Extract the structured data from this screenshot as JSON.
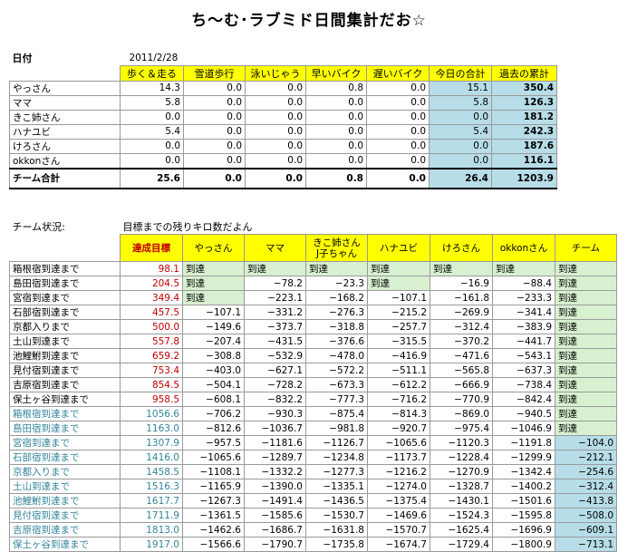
{
  "title": "ち～む･ラブミド日間集計だお☆",
  "daily": {
    "date_label": "日付",
    "date_value": "2011/2/28",
    "headers": [
      "歩く＆走る",
      "雪道歩行",
      "泳いじゃう",
      "早いバイク",
      "遅いバイク",
      "今日の合計",
      "過去の累計"
    ],
    "rows": [
      {
        "name": "やっさん",
        "vals": [
          "14.3",
          "0.0",
          "0.0",
          "0.8",
          "0.0",
          "15.1",
          "350.4"
        ]
      },
      {
        "name": "ママ",
        "vals": [
          "5.8",
          "0.0",
          "0.0",
          "0.0",
          "0.0",
          "5.8",
          "126.3"
        ]
      },
      {
        "name": "きこ姉さん",
        "vals": [
          "0.0",
          "0.0",
          "0.0",
          "0.0",
          "0.0",
          "0.0",
          "181.2"
        ]
      },
      {
        "name": "ハナユビ",
        "vals": [
          "5.4",
          "0.0",
          "0.0",
          "0.0",
          "0.0",
          "5.4",
          "242.3"
        ]
      },
      {
        "name": "けろさん",
        "vals": [
          "0.0",
          "0.0",
          "0.0",
          "0.0",
          "0.0",
          "0.0",
          "187.6"
        ]
      },
      {
        "name": "okkonさん",
        "vals": [
          "0.0",
          "0.0",
          "0.0",
          "0.0",
          "0.0",
          "0.0",
          "116.1"
        ]
      }
    ],
    "total": {
      "name": "チーム合計",
      "vals": [
        "25.6",
        "0.0",
        "0.0",
        "0.8",
        "0.0",
        "26.4",
        "1203.9"
      ]
    }
  },
  "status": {
    "label": "チーム状況:",
    "note": "目標までの残りキロ数だよん",
    "headers": [
      "達成目標",
      "やっさん",
      "ママ",
      "きこ姉さん\nJ子ちゃん",
      "ハナユビ",
      "けろさん",
      "okkonさん",
      "チーム"
    ],
    "rows": [
      {
        "name": "箱根宿到達まで",
        "goal": "98.1",
        "vals": [
          "到達",
          "到達",
          "到達",
          "到達",
          "到達",
          "到達",
          "到達"
        ]
      },
      {
        "name": "島田宿到達まで",
        "goal": "204.5",
        "vals": [
          "到達",
          "−78.2",
          "−23.3",
          "到達",
          "−16.9",
          "−88.4",
          "到達"
        ]
      },
      {
        "name": "宮宿到達まで",
        "goal": "349.4",
        "vals": [
          "到達",
          "−223.1",
          "−168.2",
          "−107.1",
          "−161.8",
          "−233.3",
          "到達"
        ]
      },
      {
        "name": "石部宿到達まで",
        "goal": "457.5",
        "vals": [
          "−107.1",
          "−331.2",
          "−276.3",
          "−215.2",
          "−269.9",
          "−341.4",
          "到達"
        ]
      },
      {
        "name": "京都入りまで",
        "goal": "500.0",
        "vals": [
          "−149.6",
          "−373.7",
          "−318.8",
          "−257.7",
          "−312.4",
          "−383.9",
          "到達"
        ]
      },
      {
        "name": "土山到達まで",
        "goal": "557.8",
        "vals": [
          "−207.4",
          "−431.5",
          "−376.6",
          "−315.5",
          "−370.2",
          "−441.7",
          "到達"
        ]
      },
      {
        "name": "池鯉鮒到達まで",
        "goal": "659.2",
        "vals": [
          "−308.8",
          "−532.9",
          "−478.0",
          "−416.9",
          "−471.6",
          "−543.1",
          "到達"
        ]
      },
      {
        "name": "見付宿到達まで",
        "goal": "753.4",
        "vals": [
          "−403.0",
          "−627.1",
          "−572.2",
          "−511.1",
          "−565.8",
          "−637.3",
          "到達"
        ]
      },
      {
        "name": "吉原宿到達まで",
        "goal": "854.5",
        "vals": [
          "−504.1",
          "−728.2",
          "−673.3",
          "−612.2",
          "−666.9",
          "−738.4",
          "到達"
        ]
      },
      {
        "name": "保土ヶ谷到達まで",
        "goal": "958.5",
        "vals": [
          "−608.1",
          "−832.2",
          "−777.3",
          "−716.2",
          "−770.9",
          "−842.4",
          "到達"
        ]
      },
      {
        "name": "箱根宿到達まで",
        "goal": "1056.6",
        "vals": [
          "−706.2",
          "−930.3",
          "−875.4",
          "−814.3",
          "−869.0",
          "−940.5",
          "到達"
        ]
      },
      {
        "name": "島田宿到達まで",
        "goal": "1163.0",
        "vals": [
          "−812.6",
          "−1036.7",
          "−981.8",
          "−920.7",
          "−975.4",
          "−1046.9",
          "到達"
        ]
      },
      {
        "name": "宮宿到達まで",
        "goal": "1307.9",
        "vals": [
          "−957.5",
          "−1181.6",
          "−1126.7",
          "−1065.6",
          "−1120.3",
          "−1191.8",
          "−104.0"
        ]
      },
      {
        "name": "石部宿到達まで",
        "goal": "1416.0",
        "vals": [
          "−1065.6",
          "−1289.7",
          "−1234.8",
          "−1173.7",
          "−1228.4",
          "−1299.9",
          "−212.1"
        ]
      },
      {
        "name": "京都入りまで",
        "goal": "1458.5",
        "vals": [
          "−1108.1",
          "−1332.2",
          "−1277.3",
          "−1216.2",
          "−1270.9",
          "−1342.4",
          "−254.6"
        ]
      },
      {
        "name": "土山到達まで",
        "goal": "1516.3",
        "vals": [
          "−1165.9",
          "−1390.0",
          "−1335.1",
          "−1274.0",
          "−1328.7",
          "−1400.2",
          "−312.4"
        ]
      },
      {
        "name": "池鯉鮒到達まで",
        "goal": "1617.7",
        "vals": [
          "−1267.3",
          "−1491.4",
          "−1436.5",
          "−1375.4",
          "−1430.1",
          "−1501.6",
          "−413.8"
        ]
      },
      {
        "name": "見付宿到達まで",
        "goal": "1711.9",
        "vals": [
          "−1361.5",
          "−1585.6",
          "−1530.7",
          "−1469.6",
          "−1524.3",
          "−1595.8",
          "−508.0"
        ]
      },
      {
        "name": "吉原宿到達まで",
        "goal": "1813.0",
        "vals": [
          "−1462.6",
          "−1686.7",
          "−1631.8",
          "−1570.7",
          "−1625.4",
          "−1696.9",
          "−609.1"
        ]
      },
      {
        "name": "保土ヶ谷到達まで",
        "goal": "1917.0",
        "vals": [
          "−1566.6",
          "−1790.7",
          "−1735.8",
          "−1674.7",
          "−1729.4",
          "−1800.9",
          "−713.1"
        ]
      }
    ]
  }
}
